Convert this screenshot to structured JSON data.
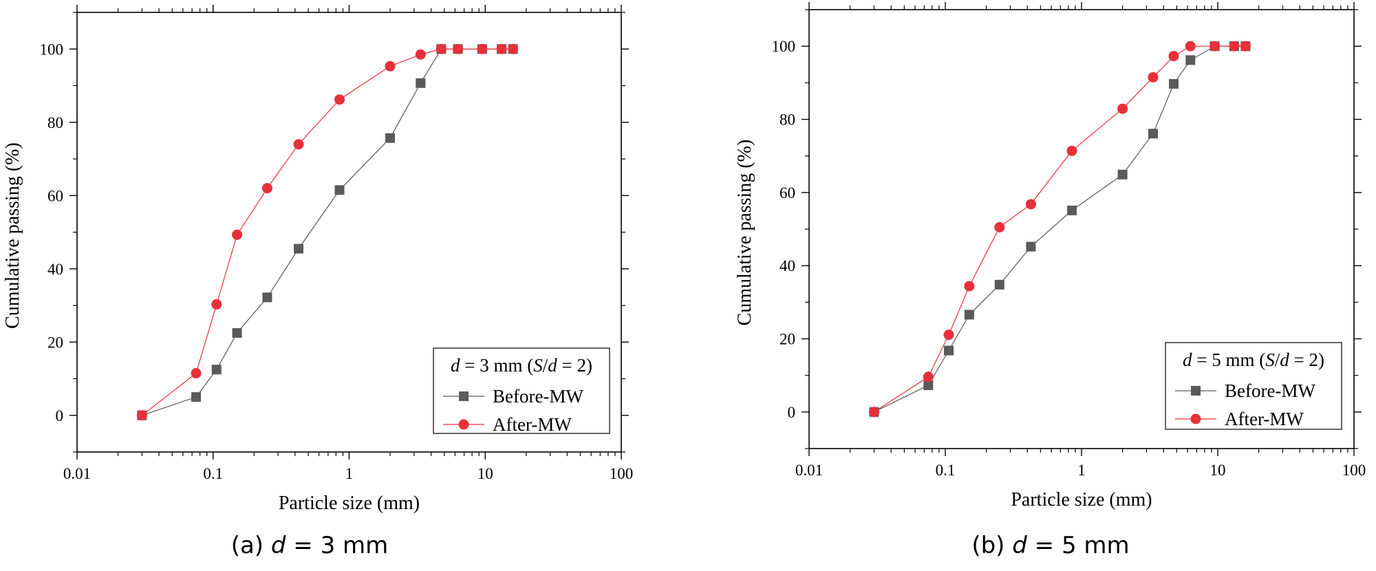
{
  "chart_data": [
    {
      "type": "scatter",
      "panel_label": "(a)",
      "caption": {
        "prefix": "(a)",
        "var": "d",
        "rest": " = 3 mm"
      },
      "xlabel": "Particle size (mm)",
      "ylabel": "Cumulative passing (%)",
      "xscale": "log",
      "xlim": [
        0.01,
        100
      ],
      "ylim": [
        -10,
        110
      ],
      "xticks": [
        0.01,
        0.1,
        1,
        10,
        100
      ],
      "xtick_labels": [
        "0.01",
        "0.1",
        "1",
        "10",
        "100"
      ],
      "yticks": [
        0,
        20,
        40,
        60,
        80,
        100
      ],
      "ytick_labels": [
        "0",
        "20",
        "40",
        "60",
        "80",
        "100"
      ],
      "grid": false,
      "legend": {
        "position": "bottom-right",
        "title": {
          "v1": "d",
          "t1": " = 3 mm (",
          "v2": "S",
          "t2": "/",
          "v3": "d",
          "t3": " = 2)"
        }
      },
      "series": [
        {
          "name": "Before-MW",
          "marker": "square",
          "color": "#5a5a5a",
          "x": [
            0.03,
            0.075,
            0.106,
            0.15,
            0.25,
            0.425,
            0.85,
            2.0,
            3.35,
            4.75,
            6.3,
            9.5,
            13.2,
            16.0
          ],
          "y": [
            0,
            5,
            12.5,
            22.5,
            32.2,
            45.5,
            61.5,
            75.7,
            90.7,
            100,
            100,
            100,
            100,
            100
          ]
        },
        {
          "name": "After-MW",
          "marker": "circle",
          "color": "#e8303a",
          "x": [
            0.03,
            0.075,
            0.106,
            0.15,
            0.25,
            0.425,
            0.85,
            2.0,
            3.35,
            4.75,
            6.3,
            9.5,
            13.2,
            16.0
          ],
          "y": [
            0,
            11.5,
            30.3,
            49.3,
            62,
            74,
            86.2,
            95.3,
            98.5,
            100,
            100,
            100,
            100,
            100
          ]
        }
      ]
    },
    {
      "type": "scatter",
      "panel_label": "(b)",
      "caption": {
        "prefix": "(b)",
        "var": "d",
        "rest": " = 5 mm"
      },
      "xlabel": "Particle size (mm)",
      "ylabel": "Cumulative passing (%)",
      "xscale": "log",
      "xlim": [
        0.01,
        100
      ],
      "ylim": [
        -10,
        110
      ],
      "xticks": [
        0.01,
        0.1,
        1,
        10,
        100
      ],
      "xtick_labels": [
        "0.01",
        "0.1",
        "1",
        "10",
        "100"
      ],
      "yticks": [
        0,
        20,
        40,
        60,
        80,
        100
      ],
      "ytick_labels": [
        "0",
        "20",
        "40",
        "60",
        "80",
        "100"
      ],
      "grid": false,
      "legend": {
        "position": "bottom-right",
        "title": {
          "v1": "d",
          "t1": " = 5 mm (",
          "v2": "S",
          "t2": "/",
          "v3": "d",
          "t3": " = 2)"
        }
      },
      "series": [
        {
          "name": "Before-MW",
          "marker": "square",
          "color": "#5a5a5a",
          "x": [
            0.03,
            0.075,
            0.106,
            0.15,
            0.25,
            0.425,
            0.85,
            2.0,
            3.35,
            4.75,
            6.3,
            9.5,
            13.2,
            16.0
          ],
          "y": [
            0,
            7.3,
            16.8,
            26.6,
            34.8,
            45.2,
            55.1,
            64.9,
            76.1,
            89.7,
            96.2,
            100,
            100,
            100
          ]
        },
        {
          "name": "After-MW",
          "marker": "circle",
          "color": "#e8303a",
          "x": [
            0.03,
            0.075,
            0.106,
            0.15,
            0.25,
            0.425,
            0.85,
            2.0,
            3.35,
            4.75,
            6.3,
            9.5,
            13.2,
            16.0
          ],
          "y": [
            0,
            9.6,
            21.1,
            34.4,
            50.5,
            56.8,
            71.4,
            82.9,
            91.5,
            97.3,
            100,
            100,
            100,
            100
          ]
        }
      ]
    }
  ]
}
